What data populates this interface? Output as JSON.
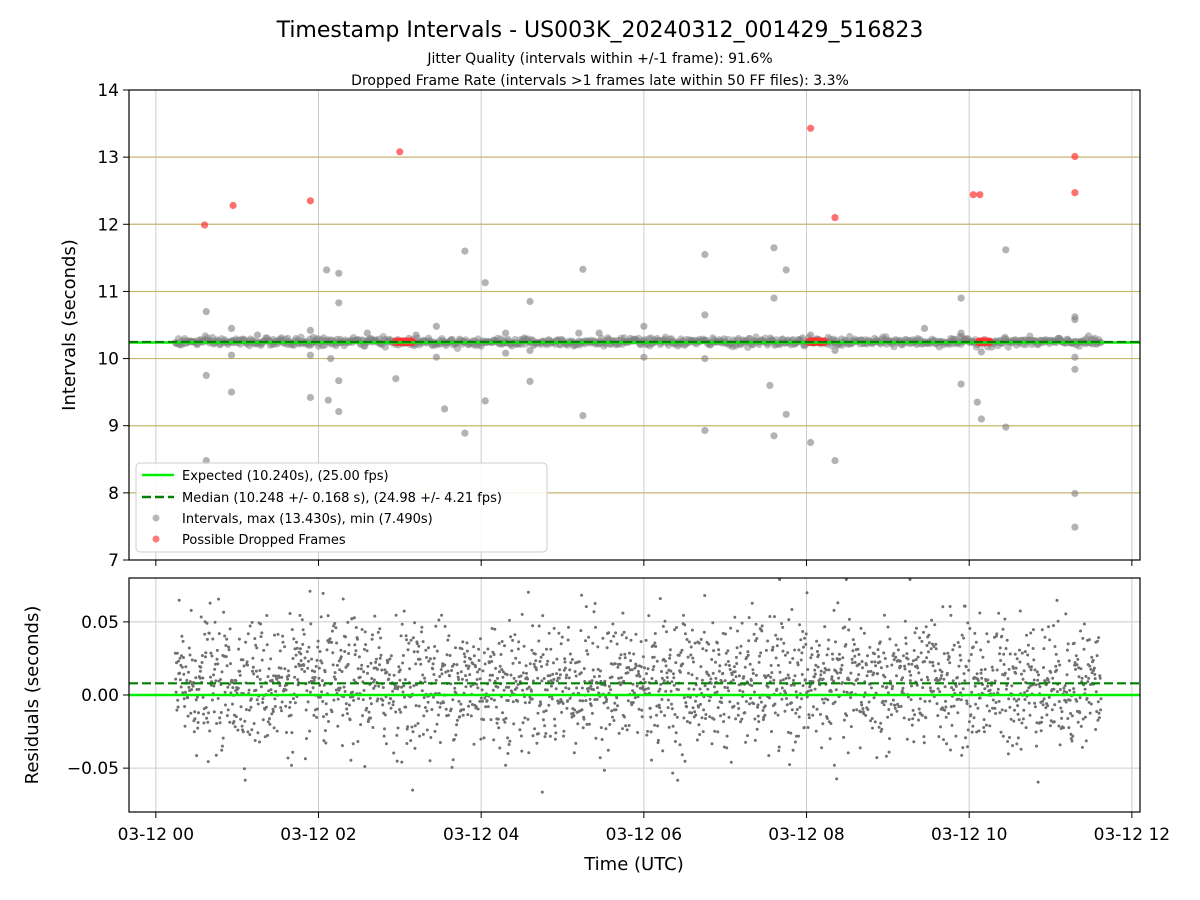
{
  "figure": {
    "title": "Timestamp Intervals - US003K_20240312_001429_516823",
    "subtitle_1": "Jitter Quality (intervals within +/-1 frame): 91.6%",
    "subtitle_2": "Dropped Frame Rate (intervals >1 frames late within 50 FF files): 3.3%",
    "xlabel": "Time (UTC)"
  },
  "colors": {
    "expected": "#00ee00",
    "median": "#008000",
    "intervals": "#808080",
    "dropped": "#ff3333",
    "frame_lines": "#c8b670",
    "grid": "#cccccc"
  },
  "chart_data": [
    {
      "type": "scatter",
      "ylabel": "Intervals (seconds)",
      "ylim": [
        7,
        14
      ],
      "yticks": [
        7,
        8,
        9,
        10,
        11,
        12,
        13,
        14
      ],
      "xlim_hours": [
        -0.33,
        12.1
      ],
      "xticks": [
        {
          "hour": 0,
          "label": "03-12 00"
        },
        {
          "hour": 2,
          "label": "03-12 02"
        },
        {
          "hour": 4,
          "label": "03-12 04"
        },
        {
          "hour": 6,
          "label": "03-12 06"
        },
        {
          "hour": 8,
          "label": "03-12 08"
        },
        {
          "hour": 10,
          "label": "03-12 10"
        },
        {
          "hour": 12,
          "label": "03-12 12"
        }
      ],
      "time_range_hours": [
        0.24,
        11.62
      ],
      "expected_interval": 10.24,
      "median_interval": 10.248,
      "frame_multiple_lines": [
        8.0,
        9.0,
        10.0,
        11.0,
        12.0,
        13.0
      ],
      "legend": {
        "location": "lower-left",
        "entries": [
          "Expected (10.240s), (25.00 fps)",
          "Median (10.248 +/- 0.168 s), (24.98 +/- 4.21 fps)",
          "Intervals, max (13.430s), min (7.490s)",
          "Possible Dropped Frames"
        ]
      },
      "outliers": [
        [
          0.62,
          10.7
        ],
        [
          0.62,
          9.75
        ],
        [
          0.62,
          8.48
        ],
        [
          0.93,
          10.45
        ],
        [
          0.93,
          10.05
        ],
        [
          0.93,
          9.5
        ],
        [
          1.25,
          10.35
        ],
        [
          1.9,
          10.42
        ],
        [
          1.9,
          10.05
        ],
        [
          1.9,
          9.42
        ],
        [
          2.1,
          11.32
        ],
        [
          2.12,
          9.38
        ],
        [
          2.15,
          10.0
        ],
        [
          2.25,
          11.27
        ],
        [
          2.25,
          10.83
        ],
        [
          2.25,
          9.67
        ],
        [
          2.25,
          9.21
        ],
        [
          2.6,
          10.38
        ],
        [
          2.95,
          9.7
        ],
        [
          3.2,
          10.35
        ],
        [
          3.45,
          10.48
        ],
        [
          3.45,
          10.02
        ],
        [
          3.55,
          9.25
        ],
        [
          3.8,
          11.6
        ],
        [
          3.8,
          8.89
        ],
        [
          4.05,
          11.13
        ],
        [
          4.05,
          9.37
        ],
        [
          4.3,
          10.38
        ],
        [
          4.3,
          10.08
        ],
        [
          4.6,
          10.85
        ],
        [
          4.6,
          10.12
        ],
        [
          4.6,
          9.66
        ],
        [
          5.2,
          10.38
        ],
        [
          5.25,
          11.33
        ],
        [
          5.25,
          9.15
        ],
        [
          5.45,
          10.38
        ],
        [
          6.0,
          10.48
        ],
        [
          6.0,
          10.02
        ],
        [
          6.75,
          11.55
        ],
        [
          6.75,
          10.65
        ],
        [
          6.75,
          10.0
        ],
        [
          6.75,
          8.93
        ],
        [
          7.6,
          11.65
        ],
        [
          7.6,
          10.9
        ],
        [
          7.55,
          9.6
        ],
        [
          7.6,
          8.85
        ],
        [
          7.75,
          11.32
        ],
        [
          7.75,
          9.17
        ],
        [
          8.05,
          10.35
        ],
        [
          8.05,
          8.75
        ],
        [
          8.35,
          8.48
        ],
        [
          8.35,
          10.12
        ],
        [
          9.45,
          10.45
        ],
        [
          9.9,
          10.9
        ],
        [
          9.9,
          10.38
        ],
        [
          9.9,
          9.62
        ],
        [
          10.1,
          9.35
        ],
        [
          10.15,
          9.1
        ],
        [
          10.15,
          10.1
        ],
        [
          10.45,
          11.62
        ],
        [
          10.45,
          8.98
        ],
        [
          11.3,
          10.62
        ],
        [
          11.3,
          10.58
        ],
        [
          11.3,
          10.02
        ],
        [
          11.3,
          9.84
        ],
        [
          11.3,
          7.99
        ],
        [
          11.3,
          7.49
        ]
      ],
      "dropped_frames": [
        [
          0.6,
          11.99
        ],
        [
          0.95,
          12.28
        ],
        [
          1.9,
          12.35
        ],
        [
          3.0,
          13.08
        ],
        [
          8.05,
          13.43
        ],
        [
          8.35,
          12.1
        ],
        [
          10.05,
          12.44
        ],
        [
          10.13,
          12.44
        ],
        [
          11.3,
          13.01
        ],
        [
          11.3,
          12.47
        ]
      ],
      "dropped_frame_clusters": [
        {
          "start": 2.95,
          "end": 3.15,
          "value": 10.25
        },
        {
          "start": 8.03,
          "end": 8.22,
          "value": 10.25
        },
        {
          "start": 10.12,
          "end": 10.25,
          "value": 10.25
        }
      ]
    },
    {
      "type": "scatter",
      "ylabel": "Residuals (seconds)",
      "ylim": [
        -0.08,
        0.08
      ],
      "yticks": [
        -0.05,
        0.0,
        0.05
      ],
      "ytick_labels": [
        "−0.05",
        "0.00",
        "0.05"
      ],
      "expected_residual": 0.0,
      "median_residual": 0.008,
      "residual_spread_seconds": 0.022,
      "point_count": 2400
    }
  ]
}
